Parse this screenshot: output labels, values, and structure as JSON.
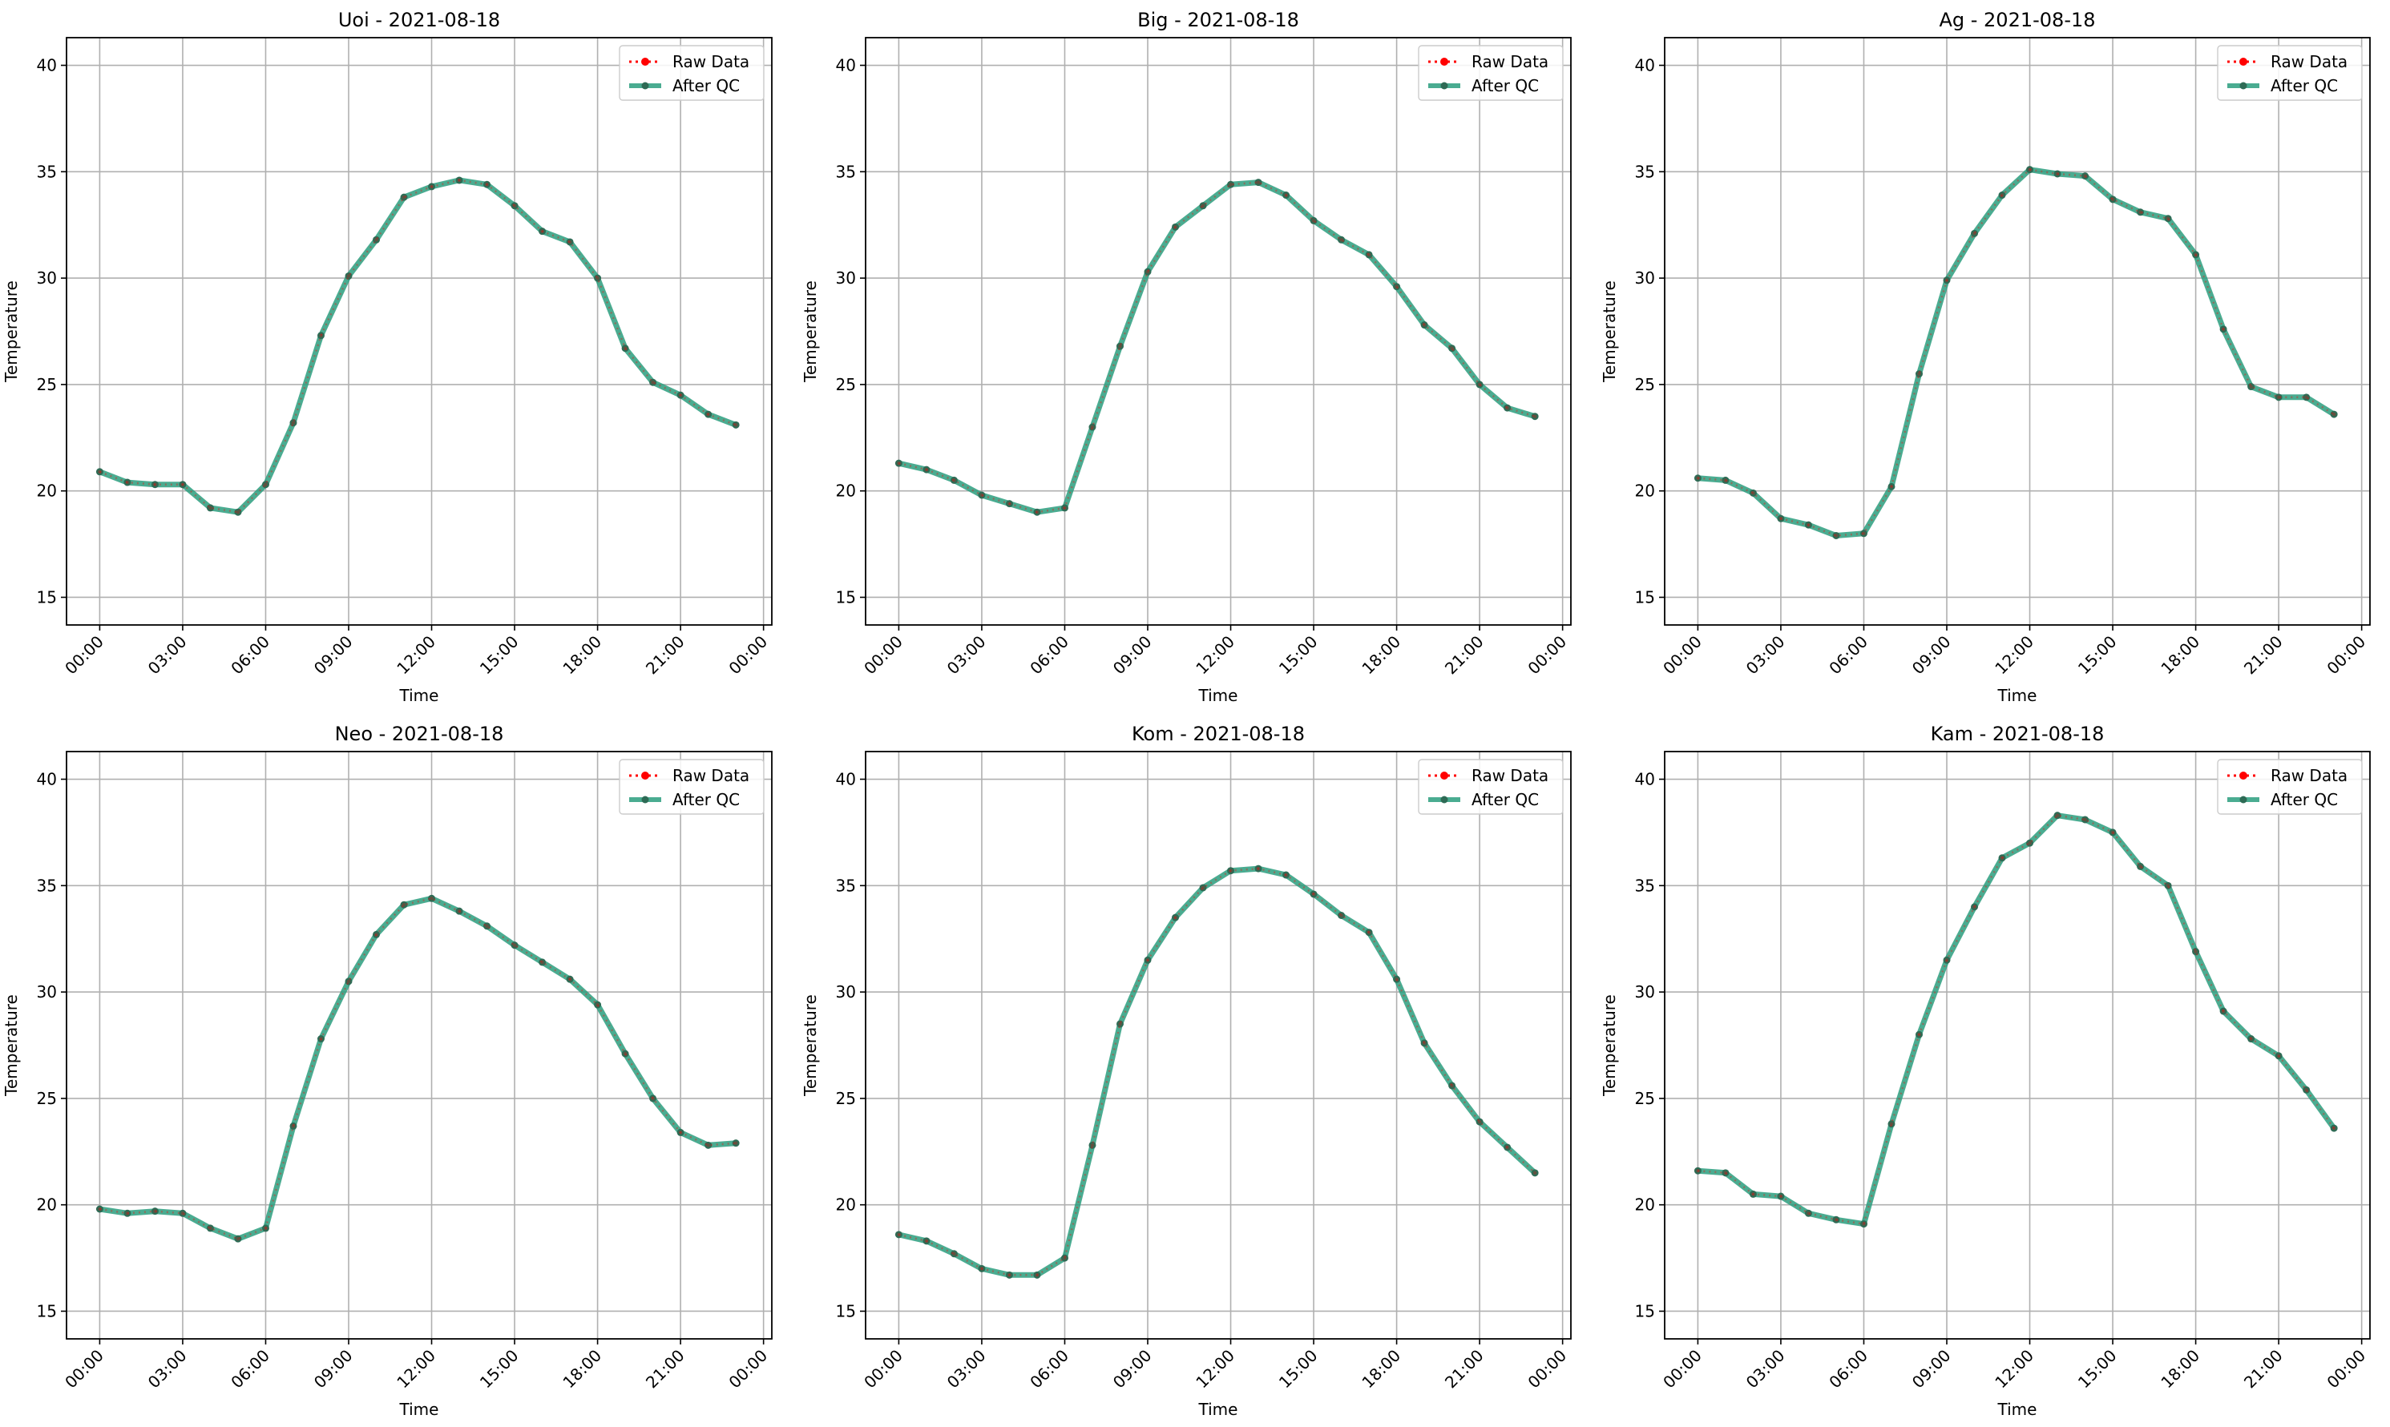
{
  "figure": {
    "colors": {
      "raw": "#ff0000",
      "qc": "#2a9d7e",
      "marker_qc": "#2e6b55",
      "grid": "#b0b0b0"
    }
  },
  "chart_data": [
    {
      "type": "line",
      "title": "Uoi - 2021-08-18",
      "xlabel": "Time",
      "ylabel": "Temperature",
      "x_tick_labels": [
        "00:00",
        "03:00",
        "06:00",
        "09:00",
        "12:00",
        "15:00",
        "18:00",
        "21:00",
        "00:00"
      ],
      "y_ticks": [
        15,
        20,
        25,
        30,
        35,
        40
      ],
      "ylim": [
        13.7,
        41.3
      ],
      "xlim_hours": [
        -1.2,
        24.3
      ],
      "grid": true,
      "legend": "top-right",
      "x_hours": [
        0,
        1,
        2,
        3,
        4,
        5,
        6,
        7,
        8,
        9,
        10,
        11,
        12,
        13,
        14,
        15,
        16,
        17,
        18,
        19,
        20,
        21,
        22,
        23
      ],
      "series": [
        {
          "name": "Raw Data",
          "values": [
            20.9,
            20.4,
            20.3,
            20.3,
            19.2,
            19.0,
            20.3,
            23.2,
            27.3,
            30.1,
            31.8,
            33.8,
            34.3,
            34.6,
            34.4,
            33.4,
            32.2,
            31.7,
            30.0,
            26.7,
            25.1,
            24.5,
            23.6,
            23.1
          ]
        },
        {
          "name": "After QC",
          "values": [
            20.9,
            20.4,
            20.3,
            20.3,
            19.2,
            19.0,
            20.3,
            23.2,
            27.3,
            30.1,
            31.8,
            33.8,
            34.3,
            34.6,
            34.4,
            33.4,
            32.2,
            31.7,
            30.0,
            26.7,
            25.1,
            24.5,
            23.6,
            23.1
          ]
        }
      ]
    },
    {
      "type": "line",
      "title": "Big - 2021-08-18",
      "xlabel": "Time",
      "ylabel": "Temperature",
      "x_tick_labels": [
        "00:00",
        "03:00",
        "06:00",
        "09:00",
        "12:00",
        "15:00",
        "18:00",
        "21:00",
        "00:00"
      ],
      "y_ticks": [
        15,
        20,
        25,
        30,
        35,
        40
      ],
      "ylim": [
        13.7,
        41.3
      ],
      "xlim_hours": [
        -1.2,
        24.3
      ],
      "grid": true,
      "legend": "top-right",
      "x_hours": [
        0,
        1,
        2,
        3,
        4,
        5,
        6,
        7,
        8,
        9,
        10,
        11,
        12,
        13,
        14,
        15,
        16,
        17,
        18,
        19,
        20,
        21,
        22,
        23
      ],
      "series": [
        {
          "name": "Raw Data",
          "values": [
            21.3,
            21.0,
            20.5,
            19.8,
            19.4,
            19.0,
            19.2,
            23.0,
            26.8,
            30.3,
            32.4,
            33.4,
            34.4,
            34.5,
            33.9,
            32.7,
            31.8,
            31.1,
            29.6,
            27.8,
            26.7,
            25.0,
            23.9,
            23.5
          ]
        },
        {
          "name": "After QC",
          "values": [
            21.3,
            21.0,
            20.5,
            19.8,
            19.4,
            19.0,
            19.2,
            23.0,
            26.8,
            30.3,
            32.4,
            33.4,
            34.4,
            34.5,
            33.9,
            32.7,
            31.8,
            31.1,
            29.6,
            27.8,
            26.7,
            25.0,
            23.9,
            23.5
          ]
        }
      ]
    },
    {
      "type": "line",
      "title": "Ag - 2021-08-18",
      "xlabel": "Time",
      "ylabel": "Temperature",
      "x_tick_labels": [
        "00:00",
        "03:00",
        "06:00",
        "09:00",
        "12:00",
        "15:00",
        "18:00",
        "21:00",
        "00:00"
      ],
      "y_ticks": [
        15,
        20,
        25,
        30,
        35,
        40
      ],
      "ylim": [
        13.7,
        41.3
      ],
      "xlim_hours": [
        -1.2,
        24.3
      ],
      "grid": true,
      "legend": "top-right",
      "x_hours": [
        0,
        1,
        2,
        3,
        4,
        5,
        6,
        7,
        8,
        9,
        10,
        11,
        12,
        13,
        14,
        15,
        16,
        17,
        18,
        19,
        20,
        21,
        22,
        23
      ],
      "series": [
        {
          "name": "Raw Data",
          "values": [
            20.6,
            20.5,
            19.9,
            18.7,
            18.4,
            17.9,
            18.0,
            20.2,
            25.5,
            29.9,
            32.1,
            33.9,
            35.1,
            34.9,
            34.8,
            33.7,
            33.1,
            32.8,
            31.1,
            27.6,
            24.9,
            24.4,
            24.4,
            23.6
          ]
        },
        {
          "name": "After QC",
          "values": [
            20.6,
            20.5,
            19.9,
            18.7,
            18.4,
            17.9,
            18.0,
            20.2,
            25.5,
            29.9,
            32.1,
            33.9,
            35.1,
            34.9,
            34.8,
            33.7,
            33.1,
            32.8,
            31.1,
            27.6,
            24.9,
            24.4,
            24.4,
            23.6
          ]
        }
      ]
    },
    {
      "type": "line",
      "title": "Neo - 2021-08-18",
      "xlabel": "Time",
      "ylabel": "Temperature",
      "x_tick_labels": [
        "00:00",
        "03:00",
        "06:00",
        "09:00",
        "12:00",
        "15:00",
        "18:00",
        "21:00",
        "00:00"
      ],
      "y_ticks": [
        15,
        20,
        25,
        30,
        35,
        40
      ],
      "ylim": [
        13.7,
        41.3
      ],
      "xlim_hours": [
        -1.2,
        24.3
      ],
      "grid": true,
      "legend": "top-right",
      "x_hours": [
        0,
        1,
        2,
        3,
        4,
        5,
        6,
        7,
        8,
        9,
        10,
        11,
        12,
        13,
        14,
        15,
        16,
        17,
        18,
        19,
        20,
        21,
        22,
        23
      ],
      "series": [
        {
          "name": "Raw Data",
          "values": [
            19.8,
            19.6,
            19.7,
            19.6,
            18.9,
            18.4,
            18.9,
            23.7,
            27.8,
            30.5,
            32.7,
            34.1,
            34.4,
            33.8,
            33.1,
            32.2,
            31.4,
            30.6,
            29.4,
            27.1,
            25.0,
            23.4,
            22.8,
            22.9
          ]
        },
        {
          "name": "After QC",
          "values": [
            19.8,
            19.6,
            19.7,
            19.6,
            18.9,
            18.4,
            18.9,
            23.7,
            27.8,
            30.5,
            32.7,
            34.1,
            34.4,
            33.8,
            33.1,
            32.2,
            31.4,
            30.6,
            29.4,
            27.1,
            25.0,
            23.4,
            22.8,
            22.9
          ]
        }
      ]
    },
    {
      "type": "line",
      "title": "Kom - 2021-08-18",
      "xlabel": "Time",
      "ylabel": "Temperature",
      "x_tick_labels": [
        "00:00",
        "03:00",
        "06:00",
        "09:00",
        "12:00",
        "15:00",
        "18:00",
        "21:00",
        "00:00"
      ],
      "y_ticks": [
        15,
        20,
        25,
        30,
        35,
        40
      ],
      "ylim": [
        13.7,
        41.3
      ],
      "xlim_hours": [
        -1.2,
        24.3
      ],
      "grid": true,
      "legend": "top-right",
      "x_hours": [
        0,
        1,
        2,
        3,
        4,
        5,
        6,
        7,
        8,
        9,
        10,
        11,
        12,
        13,
        14,
        15,
        16,
        17,
        18,
        19,
        20,
        21,
        22,
        23
      ],
      "series": [
        {
          "name": "Raw Data",
          "values": [
            18.6,
            18.3,
            17.7,
            17.0,
            16.7,
            16.7,
            17.5,
            22.8,
            28.5,
            31.5,
            33.5,
            34.9,
            35.7,
            35.8,
            35.5,
            34.6,
            33.6,
            32.8,
            30.6,
            27.6,
            25.6,
            23.9,
            22.7,
            21.5
          ]
        },
        {
          "name": "After QC",
          "values": [
            18.6,
            18.3,
            17.7,
            17.0,
            16.7,
            16.7,
            17.5,
            22.8,
            28.5,
            31.5,
            33.5,
            34.9,
            35.7,
            35.8,
            35.5,
            34.6,
            33.6,
            32.8,
            30.6,
            27.6,
            25.6,
            23.9,
            22.7,
            21.5
          ]
        }
      ]
    },
    {
      "type": "line",
      "title": "Kam - 2021-08-18",
      "xlabel": "Time",
      "ylabel": "Temperature",
      "x_tick_labels": [
        "00:00",
        "03:00",
        "06:00",
        "09:00",
        "12:00",
        "15:00",
        "18:00",
        "21:00",
        "00:00"
      ],
      "y_ticks": [
        15,
        20,
        25,
        30,
        35,
        40
      ],
      "ylim": [
        13.7,
        41.3
      ],
      "xlim_hours": [
        -1.2,
        24.3
      ],
      "grid": true,
      "legend": "top-right",
      "x_hours": [
        0,
        1,
        2,
        3,
        4,
        5,
        6,
        7,
        8,
        9,
        10,
        11,
        12,
        13,
        14,
        15,
        16,
        17,
        18,
        19,
        20,
        21,
        22,
        23
      ],
      "series": [
        {
          "name": "Raw Data",
          "values": [
            21.6,
            21.5,
            20.5,
            20.4,
            19.6,
            19.3,
            19.1,
            23.8,
            28.0,
            31.5,
            34.0,
            36.3,
            37.0,
            38.3,
            38.1,
            37.5,
            35.9,
            35.0,
            31.9,
            29.1,
            27.8,
            27.0,
            25.4,
            23.6
          ]
        },
        {
          "name": "After QC",
          "values": [
            21.6,
            21.5,
            20.5,
            20.4,
            19.6,
            19.3,
            19.1,
            23.8,
            28.0,
            31.5,
            34.0,
            36.3,
            37.0,
            38.3,
            38.1,
            37.5,
            35.9,
            35.0,
            31.9,
            29.1,
            27.8,
            27.0,
            25.4,
            23.6
          ]
        }
      ]
    }
  ]
}
